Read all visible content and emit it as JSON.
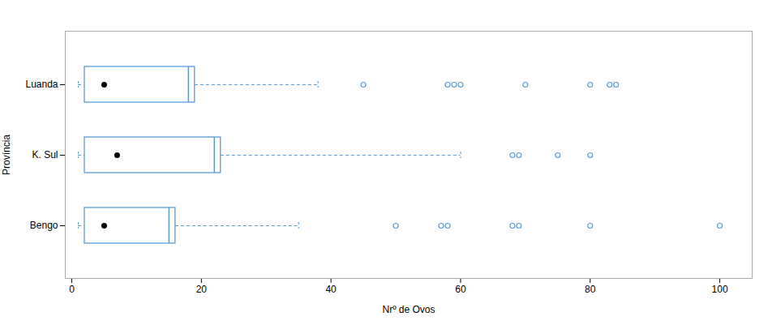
{
  "chart_data": {
    "type": "box",
    "orientation": "horizontal",
    "xlabel": "Nrº de Ovos",
    "ylabel": "Província",
    "color": "#5b9bd5",
    "categories": [
      "Luanda",
      "K. Sul",
      "Bengo"
    ],
    "q1": [
      2,
      2,
      2
    ],
    "median": [
      18,
      22,
      15
    ],
    "q3": [
      19,
      23,
      16
    ],
    "whisker_low": [
      1,
      1,
      1
    ],
    "whisker_high": [
      38,
      60,
      35
    ],
    "mean": [
      5,
      7,
      5
    ],
    "outliers": [
      [
        45,
        58,
        59,
        60,
        70,
        80,
        83,
        84
      ],
      [
        68,
        69,
        75,
        80
      ],
      [
        50,
        57,
        58,
        68,
        69,
        80,
        100
      ]
    ],
    "xlim": [
      -1,
      105
    ],
    "xticks": [
      0,
      20,
      40,
      60,
      80,
      100
    ],
    "grid": false
  }
}
